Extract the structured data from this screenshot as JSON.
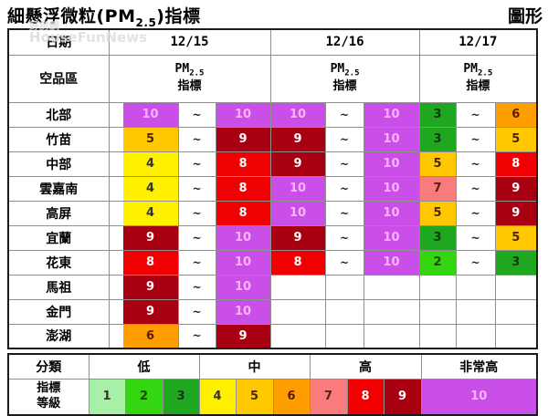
{
  "page": {
    "title_prefix": "細懸浮微粒(PM",
    "title_sub": "2.5",
    "title_suffix": ")指標",
    "graph_link": "圖形",
    "watermark_line1": "好房網",
    "watermark_line2": "HouseFunNews"
  },
  "table": {
    "date_header_label": "日期",
    "region_header_label": "空品區",
    "dates": [
      "12/15",
      "12/16",
      "12/17"
    ],
    "index_head_pm": "PM",
    "index_head_sub": "2.5",
    "index_head_line2": "指標",
    "tilde": "~",
    "rows": [
      {
        "region": "北部",
        "ranges": [
          [
            10,
            10
          ],
          [
            10,
            10
          ],
          [
            3,
            6
          ]
        ]
      },
      {
        "region": "竹苗",
        "ranges": [
          [
            5,
            9
          ],
          [
            9,
            10
          ],
          [
            3,
            5
          ]
        ]
      },
      {
        "region": "中部",
        "ranges": [
          [
            4,
            8
          ],
          [
            9,
            10
          ],
          [
            5,
            8
          ]
        ]
      },
      {
        "region": "雲嘉南",
        "ranges": [
          [
            4,
            8
          ],
          [
            10,
            10
          ],
          [
            7,
            9
          ]
        ]
      },
      {
        "region": "高屏",
        "ranges": [
          [
            4,
            8
          ],
          [
            10,
            10
          ],
          [
            5,
            9
          ]
        ]
      },
      {
        "region": "宜蘭",
        "ranges": [
          [
            9,
            10
          ],
          [
            9,
            10
          ],
          [
            3,
            5
          ]
        ]
      },
      {
        "region": "花東",
        "ranges": [
          [
            8,
            10
          ],
          [
            8,
            10
          ],
          [
            2,
            3
          ]
        ]
      },
      {
        "region": "馬祖",
        "ranges": [
          [
            9,
            10
          ],
          null,
          null
        ]
      },
      {
        "region": "金門",
        "ranges": [
          [
            9,
            10
          ],
          null,
          null
        ]
      },
      {
        "region": "澎湖",
        "ranges": [
          [
            6,
            9
          ],
          null,
          null
        ]
      }
    ]
  },
  "legend": {
    "class_label": "分類",
    "level_label_line1": "指標",
    "level_label_line2": "等級",
    "categories": [
      {
        "label": "低",
        "levels": [
          1,
          2,
          3
        ]
      },
      {
        "label": "中",
        "levels": [
          4,
          5,
          6
        ]
      },
      {
        "label": "高",
        "levels": [
          7,
          8,
          9
        ]
      },
      {
        "label": "非常高",
        "levels": [
          10
        ]
      }
    ],
    "levels": [
      1,
      2,
      3,
      4,
      5,
      6,
      7,
      8,
      9,
      10
    ]
  },
  "colors": {
    "level_bg": {
      "1": "#A8F0A8",
      "2": "#33D611",
      "3": "#1FA81F",
      "4": "#FFF000",
      "5": "#FFC800",
      "6": "#FF9E00",
      "7": "#F97B7B",
      "8": "#F00000",
      "9": "#A80011",
      "10": "#C94FE8"
    },
    "level_text": {
      "1": "#333333",
      "2": "#1A4A00",
      "3": "#143314",
      "4": "#333333",
      "5": "#4A2800",
      "6": "#5C1A00",
      "7": "#5C1A1A",
      "8": "#FFFFFF",
      "9": "#FFFFFF",
      "10": "#FFB3FF"
    },
    "grid_line": "#8F8F8F",
    "outer_border": "#1A1A1A"
  }
}
